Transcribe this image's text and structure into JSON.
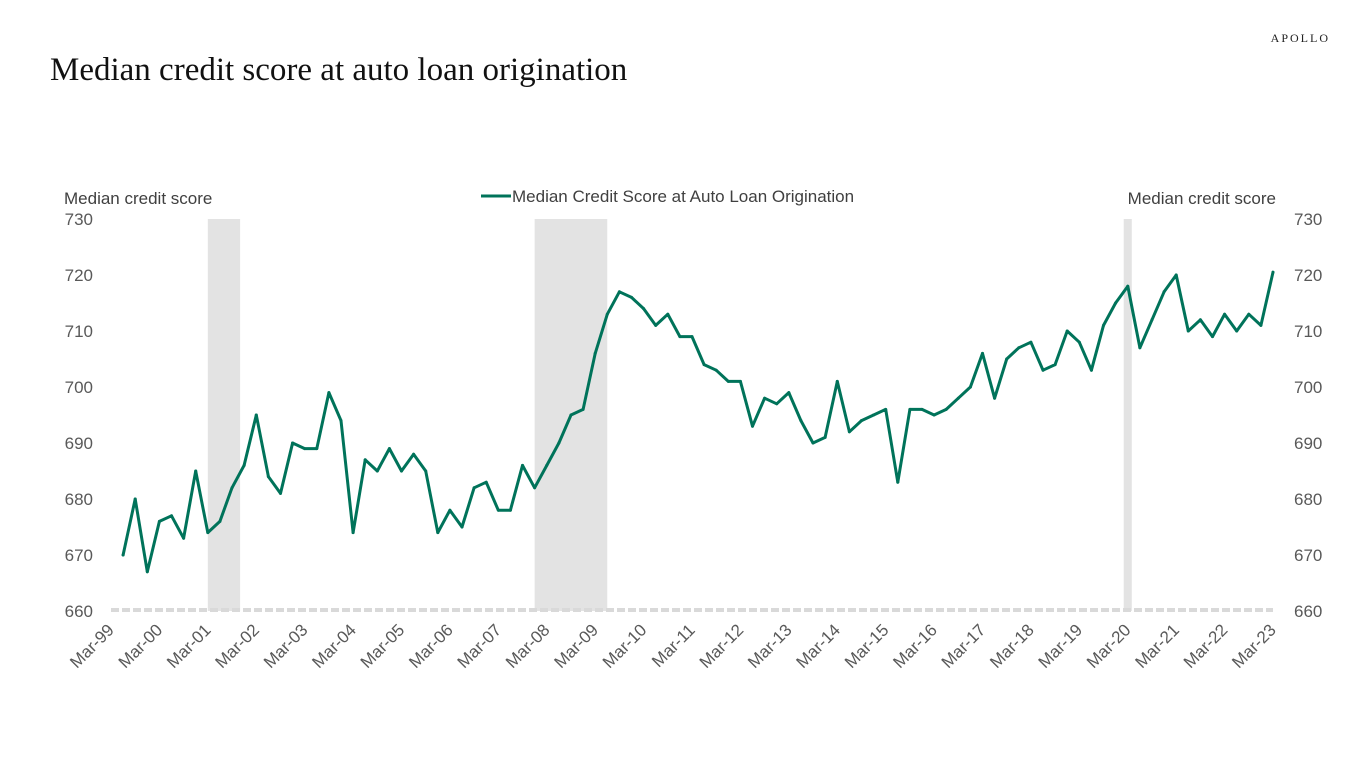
{
  "brand": "APOLLO",
  "title": "Median credit score at auto loan origination",
  "chart_data": {
    "type": "line",
    "title": "Median credit score at auto loan origination",
    "ylabel_left": "Median credit score",
    "ylabel_right": "Median credit score",
    "ylim": [
      660,
      730
    ],
    "yticks": [
      660,
      670,
      680,
      690,
      700,
      710,
      720,
      730
    ],
    "xlim": [
      "1999-03",
      "2023-03"
    ],
    "x_tick_labels": [
      "Mar-99",
      "Mar-00",
      "Mar-01",
      "Mar-02",
      "Mar-03",
      "Mar-04",
      "Mar-05",
      "Mar-06",
      "Mar-07",
      "Mar-08",
      "Mar-09",
      "Mar-10",
      "Mar-11",
      "Mar-12",
      "Mar-13",
      "Mar-14",
      "Mar-15",
      "Mar-16",
      "Mar-17",
      "Mar-18",
      "Mar-19",
      "Mar-20",
      "Mar-21",
      "Mar-22",
      "Mar-23"
    ],
    "legend_position": "top-center",
    "recessions": [
      {
        "start": "2001-03",
        "end": "2001-11"
      },
      {
        "start": "2007-12",
        "end": "2009-06"
      },
      {
        "start": "2020-02",
        "end": "2020-04"
      }
    ],
    "series": [
      {
        "name": "Median Credit Score at Auto Loan Origination",
        "color": "#00735a",
        "x": [
          "1999-06",
          "1999-09",
          "1999-12",
          "2000-03",
          "2000-06",
          "2000-09",
          "2000-12",
          "2001-03",
          "2001-06",
          "2001-09",
          "2001-12",
          "2002-03",
          "2002-06",
          "2002-09",
          "2002-12",
          "2003-03",
          "2003-06",
          "2003-09",
          "2003-12",
          "2004-03",
          "2004-06",
          "2004-09",
          "2004-12",
          "2005-03",
          "2005-06",
          "2005-09",
          "2005-12",
          "2006-03",
          "2006-06",
          "2006-09",
          "2006-12",
          "2007-03",
          "2007-06",
          "2007-09",
          "2007-12",
          "2008-03",
          "2008-06",
          "2008-09",
          "2008-12",
          "2009-03",
          "2009-06",
          "2009-09",
          "2009-12",
          "2010-03",
          "2010-06",
          "2010-09",
          "2010-12",
          "2011-03",
          "2011-06",
          "2011-09",
          "2011-12",
          "2012-03",
          "2012-06",
          "2012-09",
          "2012-12",
          "2013-03",
          "2013-06",
          "2013-09",
          "2013-12",
          "2014-03",
          "2014-06",
          "2014-09",
          "2014-12",
          "2015-03",
          "2015-06",
          "2015-09",
          "2015-12",
          "2016-03",
          "2016-06",
          "2016-09",
          "2016-12",
          "2017-03",
          "2017-06",
          "2017-09",
          "2017-12",
          "2018-03",
          "2018-06",
          "2018-09",
          "2018-12",
          "2019-03",
          "2019-06",
          "2019-09",
          "2019-12",
          "2020-03",
          "2020-06",
          "2020-09",
          "2020-12",
          "2021-03",
          "2021-06",
          "2021-09",
          "2021-12",
          "2022-03",
          "2022-06",
          "2022-09",
          "2022-12",
          "2023-03"
        ],
        "values": [
          670,
          680,
          667,
          676,
          677,
          673,
          685,
          674,
          676,
          682,
          686,
          695,
          684,
          681,
          690,
          689,
          689,
          699,
          694,
          674,
          687,
          685,
          689,
          685,
          688,
          685,
          674,
          678,
          675,
          682,
          683,
          678,
          678,
          686,
          682,
          686,
          690,
          695,
          696,
          706,
          713,
          717,
          716,
          714,
          711,
          713,
          709,
          709,
          704,
          703,
          701,
          701,
          693,
          698,
          697,
          699,
          694,
          690,
          691,
          701,
          692,
          694,
          695,
          696,
          683,
          696,
          696,
          695,
          696,
          698,
          700,
          706,
          698,
          705,
          707,
          708,
          703,
          704,
          710,
          708,
          703,
          711,
          715,
          718,
          707,
          712,
          717,
          720,
          710,
          712,
          709,
          713,
          710,
          713,
          711,
          720.5
        ]
      }
    ]
  }
}
